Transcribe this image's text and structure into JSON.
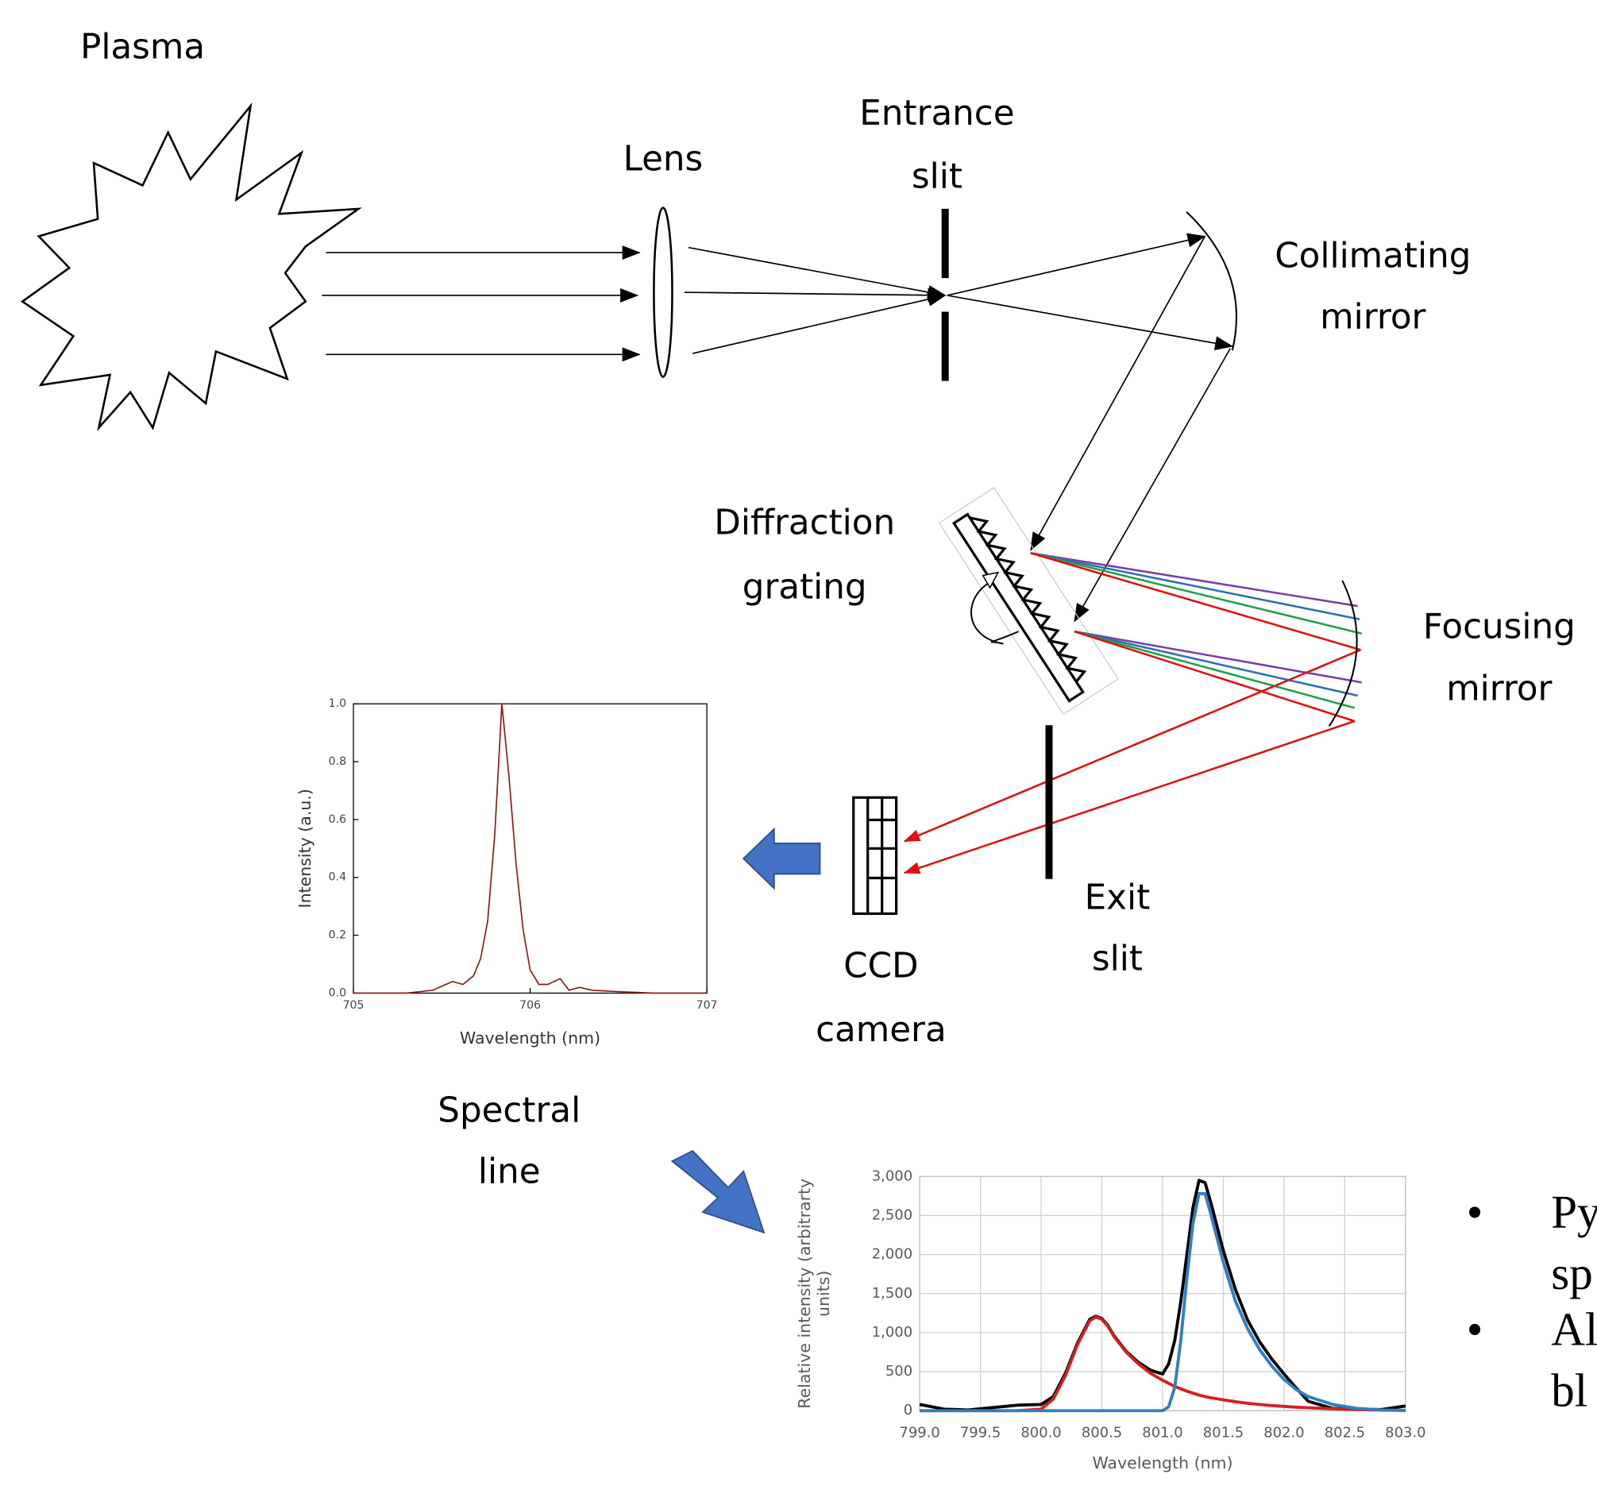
{
  "labels": {
    "plasma": "Plasma",
    "lens": "Lens",
    "entrance_slit": [
      "Entrance",
      "slit"
    ],
    "collimating_mirror": [
      "Collimating",
      "mirror"
    ],
    "diffraction_grating": [
      "Diffraction",
      "grating"
    ],
    "focusing_mirror": [
      "Focusing",
      "mirror"
    ],
    "exit_slit": [
      "Exit",
      "slit"
    ],
    "ccd_camera": [
      "CCD",
      "camera"
    ],
    "spectral_line": [
      "Spectral",
      "line"
    ]
  },
  "bullets": [
    [
      "Py",
      "sp"
    ],
    [
      "Al",
      "bl"
    ]
  ],
  "chart_data": [
    {
      "type": "line",
      "xlabel": "Wavelength (nm)",
      "ylabel": "Intensity (a.u.)",
      "x": [
        705.0,
        705.3,
        705.45,
        705.56,
        705.62,
        705.68,
        705.72,
        705.76,
        705.8,
        705.84,
        705.88,
        705.92,
        705.96,
        706.0,
        706.05,
        706.1,
        706.17,
        706.22,
        706.28,
        706.35,
        706.5,
        706.7,
        707.0
      ],
      "values": [
        0,
        0,
        0.01,
        0.04,
        0.03,
        0.06,
        0.12,
        0.25,
        0.55,
        1.0,
        0.75,
        0.45,
        0.22,
        0.08,
        0.03,
        0.03,
        0.05,
        0.01,
        0.02,
        0.01,
        0.005,
        0,
        0
      ],
      "color": "#8b1a1a",
      "xlim": [
        705,
        707
      ],
      "xticks": [
        705,
        706,
        707
      ],
      "ylim": [
        0,
        1
      ],
      "yticks": [
        {
          "value": 0,
          "label": "0.0"
        },
        0.2,
        0.4,
        0.6,
        0.8,
        {
          "value": 1,
          "label": "1.0"
        }
      ],
      "grid": false
    },
    {
      "type": "line",
      "xlabel": "Wavelength (nm)",
      "ylabel": [
        "Relative intensity (arbitrarty",
        "units)"
      ],
      "x": [
        799.0,
        799.2,
        799.4,
        799.6,
        799.8,
        800.0,
        800.1,
        800.2,
        800.3,
        800.4,
        800.45,
        800.5,
        800.55,
        800.6,
        800.7,
        800.8,
        800.9,
        801.0,
        801.05,
        801.1,
        801.15,
        801.2,
        801.25,
        801.3,
        801.35,
        801.4,
        801.5,
        801.6,
        801.7,
        801.8,
        801.9,
        802.0,
        802.1,
        802.2,
        802.4,
        802.6,
        802.8,
        803.0
      ],
      "series": [
        {
          "color": "#000000",
          "values": [
            80,
            20,
            10,
            40,
            70,
            80,
            180,
            480,
            870,
            1170,
            1210,
            1180,
            1090,
            960,
            760,
            620,
            520,
            470,
            600,
            900,
            1400,
            2000,
            2600,
            2950,
            2920,
            2650,
            2050,
            1550,
            1160,
            880,
            660,
            470,
            290,
            120,
            30,
            20,
            15,
            60
          ]
        },
        {
          "color": "#d42020",
          "values": [
            0,
            0,
            0,
            0,
            0,
            20,
            150,
            450,
            850,
            1150,
            1200,
            1170,
            1080,
            950,
            750,
            600,
            480,
            390,
            350,
            310,
            280,
            250,
            225,
            200,
            180,
            165,
            140,
            115,
            95,
            80,
            65,
            55,
            45,
            38,
            25,
            15,
            8,
            3
          ]
        },
        {
          "color": "#2f7fc1",
          "values": [
            0,
            0,
            0,
            0,
            0,
            0,
            0,
            0,
            0,
            0,
            0,
            0,
            0,
            0,
            0,
            0,
            0,
            0,
            50,
            300,
            900,
            1700,
            2400,
            2780,
            2780,
            2500,
            1900,
            1400,
            1050,
            780,
            570,
            400,
            270,
            180,
            80,
            30,
            10,
            3
          ]
        }
      ],
      "xlim": [
        799,
        803
      ],
      "xticks": [
        {
          "value": 799,
          "label": "799.0"
        },
        799.5,
        {
          "value": 800,
          "label": "800.0"
        },
        800.5,
        {
          "value": 801,
          "label": "801.0"
        },
        801.5,
        {
          "value": 802,
          "label": "802.0"
        },
        802.5,
        {
          "value": 803,
          "label": "803.0"
        }
      ],
      "ylim": [
        0,
        3000
      ],
      "yticks": [
        0,
        500,
        {
          "value": 1000,
          "label": "1,000"
        },
        {
          "value": 1500,
          "label": "1,500"
        },
        {
          "value": 2000,
          "label": "2,000"
        },
        {
          "value": 2500,
          "label": "2,500"
        },
        {
          "value": 3000,
          "label": "3,000"
        }
      ],
      "grid": true
    }
  ]
}
